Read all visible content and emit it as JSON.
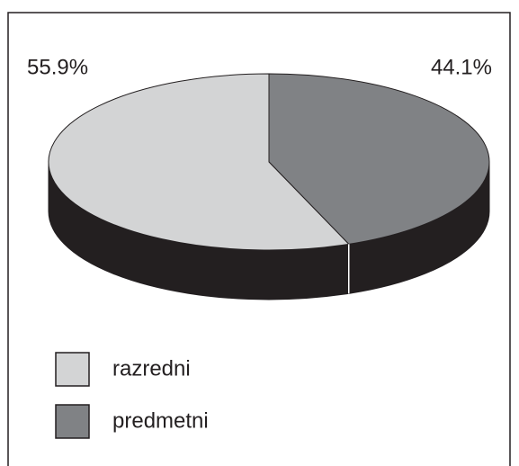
{
  "chart_data": {
    "type": "pie",
    "categories": [
      "razredni",
      "predmetni"
    ],
    "values": [
      55.9,
      44.1
    ],
    "value_labels": [
      "55.9%",
      "44.1%"
    ],
    "colors": [
      "#d3d4d5",
      "#808285"
    ],
    "side_color": "#231f20",
    "legend": "bottom-left"
  }
}
